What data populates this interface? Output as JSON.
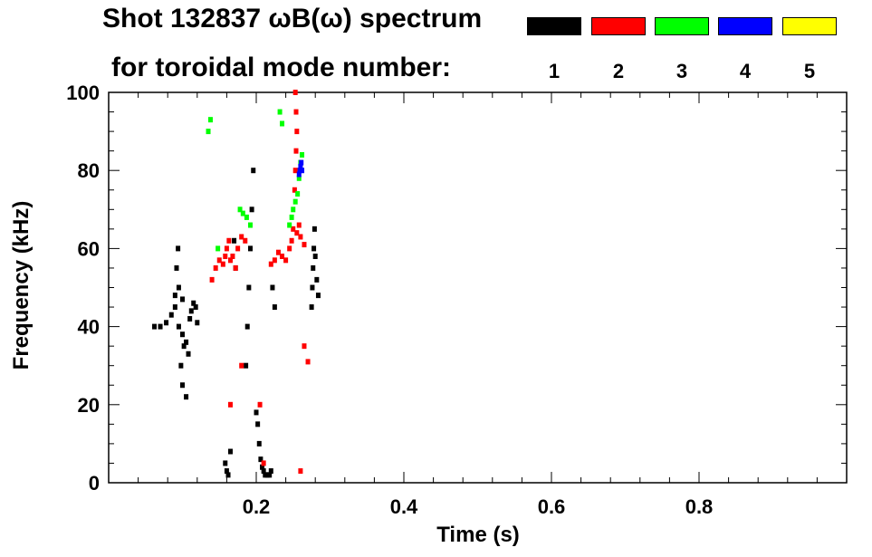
{
  "title_line1": "Shot 132837 ωB(ω) spectrum",
  "title_line2": "for toroidal mode number:",
  "legend": [
    {
      "label": "1",
      "color": "#000000"
    },
    {
      "label": "2",
      "color": "#ff0000"
    },
    {
      "label": "3",
      "color": "#00ff00"
    },
    {
      "label": "4",
      "color": "#0000ff"
    },
    {
      "label": "5",
      "color": "#ffff00"
    }
  ],
  "chart_data": {
    "type": "scatter",
    "title": "Shot 132837 ωB(ω) spectrum",
    "xlabel": "Time (s)",
    "ylabel": "Frequency (kHz)",
    "xlim": [
      0.0,
      1.0
    ],
    "ylim": [
      0,
      100
    ],
    "xticks": [
      "0.2",
      "0.4",
      "0.6",
      "0.8"
    ],
    "xtick_values": [
      0.2,
      0.4,
      0.6,
      0.8
    ],
    "yticks": [
      "0",
      "20",
      "40",
      "60",
      "80",
      "100"
    ],
    "ytick_values": [
      0,
      20,
      40,
      60,
      80,
      100
    ],
    "grid": false,
    "series": [
      {
        "name": "1",
        "color": "#000000",
        "points": [
          [
            0.062,
            40
          ],
          [
            0.07,
            40
          ],
          [
            0.078,
            41
          ],
          [
            0.085,
            43
          ],
          [
            0.09,
            45
          ],
          [
            0.095,
            40
          ],
          [
            0.1,
            38
          ],
          [
            0.102,
            35
          ],
          [
            0.105,
            36
          ],
          [
            0.108,
            33
          ],
          [
            0.11,
            42
          ],
          [
            0.112,
            44
          ],
          [
            0.1,
            47
          ],
          [
            0.095,
            50
          ],
          [
            0.09,
            48
          ],
          [
            0.115,
            46
          ],
          [
            0.118,
            45
          ],
          [
            0.12,
            41
          ],
          [
            0.092,
            55
          ],
          [
            0.094,
            60
          ],
          [
            0.098,
            30
          ],
          [
            0.1,
            25
          ],
          [
            0.105,
            22
          ],
          [
            0.158,
            5
          ],
          [
            0.16,
            3
          ],
          [
            0.162,
            2
          ],
          [
            0.165,
            8
          ],
          [
            0.17,
            62
          ],
          [
            0.172,
            55
          ],
          [
            0.2,
            18
          ],
          [
            0.202,
            15
          ],
          [
            0.204,
            10
          ],
          [
            0.206,
            6
          ],
          [
            0.208,
            4
          ],
          [
            0.21,
            3
          ],
          [
            0.212,
            2
          ],
          [
            0.215,
            2
          ],
          [
            0.218,
            2
          ],
          [
            0.22,
            3
          ],
          [
            0.222,
            50
          ],
          [
            0.225,
            45
          ],
          [
            0.275,
            45
          ],
          [
            0.276,
            50
          ],
          [
            0.277,
            55
          ],
          [
            0.278,
            60
          ],
          [
            0.279,
            65
          ],
          [
            0.28,
            58
          ],
          [
            0.282,
            52
          ],
          [
            0.284,
            48
          ],
          [
            0.186,
            30
          ],
          [
            0.188,
            40
          ],
          [
            0.19,
            50
          ],
          [
            0.192,
            60
          ],
          [
            0.194,
            70
          ],
          [
            0.196,
            80
          ]
        ]
      },
      {
        "name": "2",
        "color": "#ff0000",
        "points": [
          [
            0.14,
            52
          ],
          [
            0.145,
            55
          ],
          [
            0.15,
            57
          ],
          [
            0.155,
            56
          ],
          [
            0.158,
            58
          ],
          [
            0.16,
            60
          ],
          [
            0.163,
            62
          ],
          [
            0.165,
            57
          ],
          [
            0.168,
            58
          ],
          [
            0.172,
            55
          ],
          [
            0.175,
            60
          ],
          [
            0.18,
            63
          ],
          [
            0.185,
            62
          ],
          [
            0.245,
            60
          ],
          [
            0.248,
            62
          ],
          [
            0.25,
            65
          ],
          [
            0.255,
            64
          ],
          [
            0.258,
            66
          ],
          [
            0.26,
            63
          ],
          [
            0.265,
            61
          ],
          [
            0.235,
            58
          ],
          [
            0.24,
            57
          ],
          [
            0.22,
            56
          ],
          [
            0.225,
            57
          ],
          [
            0.23,
            59
          ],
          [
            0.252,
            75
          ],
          [
            0.253,
            80
          ],
          [
            0.254,
            85
          ],
          [
            0.255,
            90
          ],
          [
            0.254,
            95
          ],
          [
            0.253,
            100
          ],
          [
            0.18,
            30
          ],
          [
            0.205,
            20
          ],
          [
            0.21,
            5
          ],
          [
            0.26,
            3
          ],
          [
            0.265,
            35
          ],
          [
            0.27,
            31
          ],
          [
            0.165,
            20
          ]
        ]
      },
      {
        "name": "3",
        "color": "#00ff00",
        "points": [
          [
            0.178,
            70
          ],
          [
            0.182,
            69
          ],
          [
            0.187,
            68
          ],
          [
            0.192,
            66
          ],
          [
            0.245,
            66
          ],
          [
            0.248,
            68
          ],
          [
            0.25,
            70
          ],
          [
            0.253,
            72
          ],
          [
            0.256,
            74
          ],
          [
            0.258,
            78
          ],
          [
            0.26,
            82
          ],
          [
            0.262,
            84
          ],
          [
            0.135,
            90
          ],
          [
            0.138,
            93
          ],
          [
            0.148,
            60
          ],
          [
            0.232,
            95
          ],
          [
            0.235,
            92
          ]
        ]
      },
      {
        "name": "4",
        "color": "#0000ff",
        "points": [
          [
            0.258,
            79
          ],
          [
            0.259,
            80
          ],
          [
            0.26,
            81
          ],
          [
            0.261,
            82
          ],
          [
            0.262,
            80
          ]
        ]
      },
      {
        "name": "5",
        "color": "#ffff00",
        "points": []
      }
    ]
  }
}
